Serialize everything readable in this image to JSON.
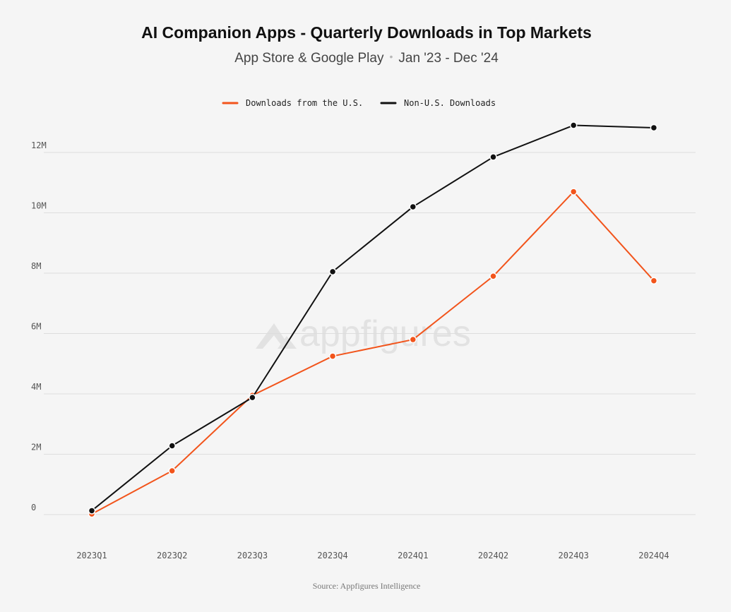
{
  "chart_data": {
    "type": "line",
    "title": "AI Companion Apps - Quarterly Downloads in Top Markets",
    "subtitle_left": "App Store & Google Play",
    "subtitle_separator": "•",
    "subtitle_right": "Jan '23 - Dec '24",
    "watermark": "appfigures",
    "source": "Source: Appfigures Intelligence",
    "categories": [
      "2023Q1",
      "2023Q2",
      "2023Q3",
      "2023Q4",
      "2024Q1",
      "2024Q2",
      "2024Q3",
      "2024Q4"
    ],
    "y_ticks": [
      {
        "value": 0,
        "label": "0"
      },
      {
        "value": 2000000,
        "label": "2M"
      },
      {
        "value": 4000000,
        "label": "4M"
      },
      {
        "value": 6000000,
        "label": "6M"
      },
      {
        "value": 8000000,
        "label": "8M"
      },
      {
        "value": 10000000,
        "label": "10M"
      },
      {
        "value": 12000000,
        "label": "12M"
      }
    ],
    "ylim": [
      0,
      13000000
    ],
    "grid": true,
    "legend_position": "top-center",
    "series": [
      {
        "name": "Downloads from the U.S.",
        "color": "#f2541b",
        "values": [
          20000,
          1450000,
          3950000,
          5250000,
          5800000,
          7900000,
          10700000,
          7750000
        ]
      },
      {
        "name": "Non-U.S. Downloads",
        "color": "#111111",
        "values": [
          130000,
          2280000,
          3880000,
          8050000,
          10200000,
          11850000,
          12900000,
          12820000
        ]
      }
    ]
  }
}
